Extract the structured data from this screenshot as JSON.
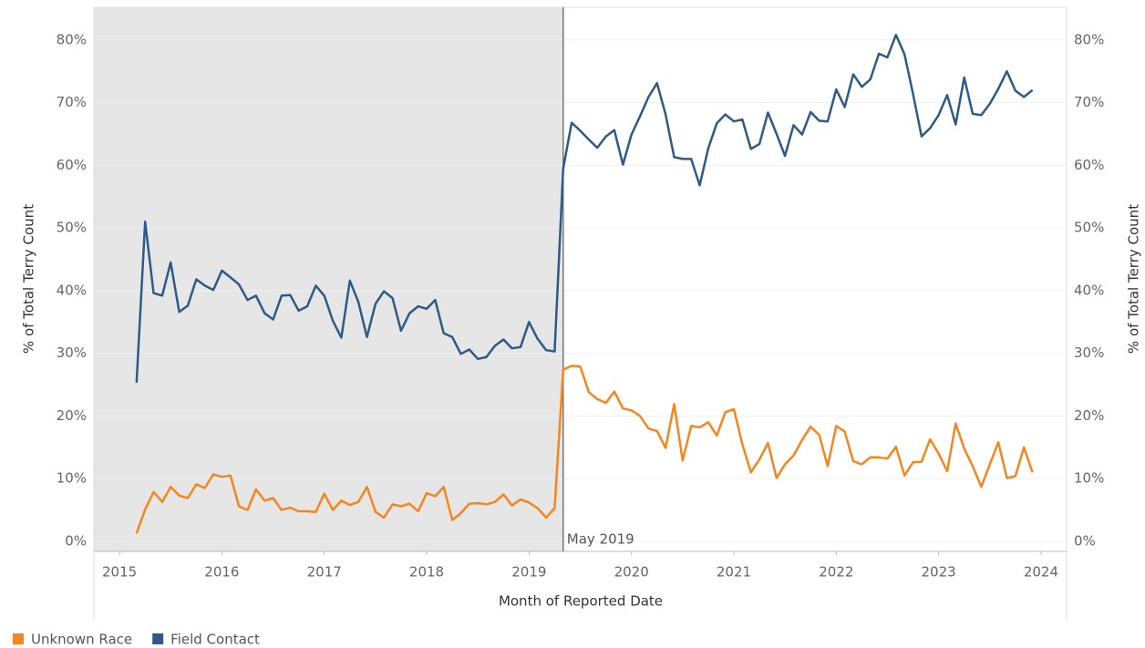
{
  "chart_data": {
    "type": "line",
    "x_label": "Month of Reported Date",
    "y_label": "% of Total Terry Count",
    "y2_label": "% of Total Terry Count",
    "x": [
      "2015-03",
      "2015-04",
      "2015-05",
      "2015-06",
      "2015-07",
      "2015-08",
      "2015-09",
      "2015-10",
      "2015-11",
      "2015-12",
      "2016-01",
      "2016-02",
      "2016-03",
      "2016-04",
      "2016-05",
      "2016-06",
      "2016-07",
      "2016-08",
      "2016-09",
      "2016-10",
      "2016-11",
      "2016-12",
      "2017-01",
      "2017-02",
      "2017-03",
      "2017-04",
      "2017-05",
      "2017-06",
      "2017-07",
      "2017-08",
      "2017-09",
      "2017-10",
      "2017-11",
      "2017-12",
      "2018-01",
      "2018-02",
      "2018-03",
      "2018-04",
      "2018-05",
      "2018-06",
      "2018-07",
      "2018-08",
      "2018-09",
      "2018-10",
      "2018-11",
      "2018-12",
      "2019-01",
      "2019-02",
      "2019-03",
      "2019-04",
      "2019-05",
      "2019-06",
      "2019-07",
      "2019-08",
      "2019-09",
      "2019-10",
      "2019-11",
      "2019-12",
      "2020-01",
      "2020-02",
      "2020-03",
      "2020-04",
      "2020-05",
      "2020-06",
      "2020-07",
      "2020-08",
      "2020-09",
      "2020-10",
      "2020-11",
      "2020-12",
      "2021-01",
      "2021-02",
      "2021-03",
      "2021-04",
      "2021-05",
      "2021-06",
      "2021-07",
      "2021-08",
      "2021-09",
      "2021-10",
      "2021-11",
      "2021-12",
      "2022-01",
      "2022-02",
      "2022-03",
      "2022-04",
      "2022-05",
      "2022-06",
      "2022-07",
      "2022-08",
      "2022-09",
      "2022-10",
      "2022-11",
      "2022-12",
      "2023-01",
      "2023-02",
      "2023-03",
      "2023-04",
      "2023-05",
      "2023-06",
      "2023-07",
      "2023-08",
      "2023-09",
      "2023-10",
      "2023-11",
      "2023-12"
    ],
    "series": [
      {
        "name": "Unknown Race",
        "color": "#f5861f",
        "values": [
          1.3,
          5.1,
          7.9,
          6.3,
          8.7,
          7.3,
          6.9,
          9.1,
          8.5,
          10.7,
          10.3,
          10.5,
          5.6,
          5.0,
          8.3,
          6.5,
          6.9,
          5.0,
          5.4,
          4.8,
          4.8,
          4.7,
          7.6,
          5.0,
          6.5,
          5.8,
          6.3,
          8.7,
          4.7,
          3.8,
          5.9,
          5.6,
          6.0,
          4.8,
          7.7,
          7.2,
          8.7,
          3.4,
          4.5,
          6.0,
          6.1,
          5.9,
          6.3,
          7.5,
          5.7,
          6.7,
          6.2,
          5.3,
          3.8,
          5.3,
          27.4,
          28.0,
          27.9,
          23.8,
          22.7,
          22.1,
          23.9,
          21.2,
          20.9,
          20.0,
          18.0,
          17.6,
          14.9,
          21.9,
          12.9,
          18.4,
          18.2,
          19.0,
          16.9,
          20.6,
          21.1,
          15.5,
          11.0,
          13.1,
          15.7,
          10.1,
          12.3,
          13.7,
          16.2,
          18.3,
          17.0,
          12.0,
          18.4,
          17.5,
          12.8,
          12.3,
          13.4,
          13.4,
          13.2,
          15.1,
          10.5,
          12.6,
          12.7,
          16.3,
          14.0,
          11.2,
          18.8,
          14.8,
          12.0,
          8.7,
          12.3,
          15.8,
          10.1,
          10.4,
          15.0,
          11.0
        ]
      },
      {
        "name": "Field Contact",
        "color": "#2e5a87",
        "axis": "y2",
        "values": [
          25.3,
          51.0,
          39.6,
          39.2,
          44.5,
          36.6,
          37.6,
          41.8,
          40.8,
          40.1,
          43.2,
          42.1,
          41.0,
          38.5,
          39.2,
          36.4,
          35.4,
          39.2,
          39.3,
          36.8,
          37.5,
          40.8,
          39.2,
          35.2,
          32.5,
          41.6,
          38.2,
          32.6,
          37.9,
          39.9,
          38.8,
          33.6,
          36.4,
          37.5,
          37.1,
          38.5,
          33.2,
          32.6,
          29.9,
          30.6,
          29.1,
          29.4,
          31.2,
          32.2,
          30.8,
          31.0,
          35.0,
          32.3,
          30.5,
          30.3,
          59.5,
          66.8,
          65.5,
          64.1,
          62.8,
          64.6,
          65.6,
          60.1,
          64.9,
          67.8,
          70.9,
          73.1,
          68.1,
          61.3,
          61.0,
          61.0,
          56.8,
          62.7,
          66.7,
          68.1,
          67.0,
          67.3,
          62.6,
          63.4,
          68.4,
          65.0,
          61.5,
          66.4,
          64.9,
          68.5,
          67.1,
          67.0,
          72.1,
          69.3,
          74.5,
          72.5,
          73.7,
          77.8,
          77.2,
          80.8,
          77.7,
          71.4,
          64.6,
          65.9,
          68.0,
          71.2,
          66.5,
          74.0,
          68.2,
          68.0,
          69.8,
          72.2,
          75.0,
          71.9,
          70.9,
          72.0
        ]
      }
    ],
    "xlim": [
      "2014-10",
      "2024-04"
    ],
    "xticks": [
      2015,
      2016,
      2017,
      2018,
      2019,
      2020,
      2021,
      2022,
      2023,
      2024
    ],
    "ylim": [
      -1.6,
      85.2
    ],
    "yticks": [
      {
        "value": 0,
        "label": "0%"
      },
      {
        "value": 10,
        "label": "10%"
      },
      {
        "value": 20,
        "label": "20%"
      },
      {
        "value": 30,
        "label": "30%"
      },
      {
        "value": 40,
        "label": "40%"
      },
      {
        "value": 50,
        "label": "50%"
      },
      {
        "value": 60,
        "label": "60%"
      },
      {
        "value": 70,
        "label": "70%"
      },
      {
        "value": 80,
        "label": "80%"
      }
    ],
    "y2lim": [
      -1.6,
      85.2
    ],
    "y2ticks": [
      {
        "value": 0,
        "label": "0%"
      },
      {
        "value": 10,
        "label": "10%"
      },
      {
        "value": 20,
        "label": "20%"
      },
      {
        "value": 30,
        "label": "30%"
      },
      {
        "value": 40,
        "label": "40%"
      },
      {
        "value": 50,
        "label": "50%"
      },
      {
        "value": 60,
        "label": "60%"
      },
      {
        "value": 70,
        "label": "70%"
      },
      {
        "value": 80,
        "label": "80%"
      }
    ],
    "grid": true,
    "reference_line": {
      "x": "2019-05",
      "label": "May 2019"
    },
    "legend": "bottom-left"
  }
}
